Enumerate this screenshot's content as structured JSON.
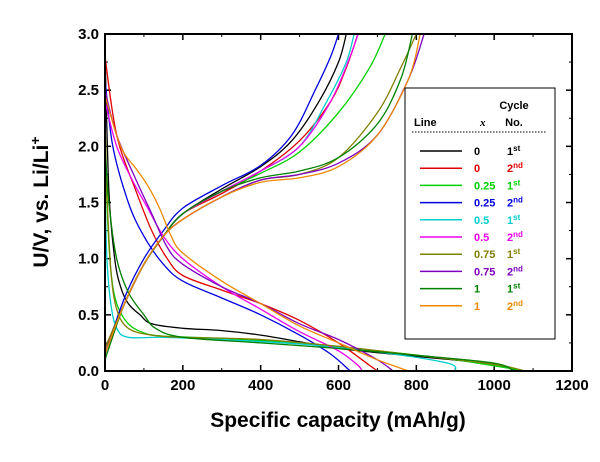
{
  "chart_data": {
    "type": "line",
    "xlabel": "Specific capacity (mAh/g)",
    "ylabel": "U/V, vs. Li/Li",
    "ylabel_sup": "+",
    "xlim": [
      0,
      1200
    ],
    "ylim": [
      0,
      3.0
    ],
    "xticks": [
      "0",
      "200",
      "400",
      "600",
      "800",
      "1000",
      "1200"
    ],
    "yticks": [
      "0.0",
      "0.5",
      "1.0",
      "1.5",
      "2.0",
      "2.5",
      "3.0"
    ],
    "legend": {
      "header_line": "Line",
      "header_x": "x",
      "header_cycle": "Cycle",
      "header_no": "No.",
      "position": "right"
    },
    "series": [
      {
        "x_label": "0",
        "cycle": "1",
        "cycle_sup": "st",
        "color": "#000000",
        "discharge": [
          [
            0,
            2.85
          ],
          [
            10,
            1.6
          ],
          [
            25,
            1.0
          ],
          [
            40,
            0.75
          ],
          [
            60,
            0.6
          ],
          [
            90,
            0.5
          ],
          [
            120,
            0.42
          ],
          [
            200,
            0.38
          ],
          [
            300,
            0.36
          ],
          [
            400,
            0.32
          ],
          [
            500,
            0.26
          ],
          [
            600,
            0.2
          ],
          [
            800,
            0.13
          ],
          [
            1000,
            0.06
          ],
          [
            1060,
            0.0
          ]
        ],
        "charge": [
          [
            0,
            0.2
          ],
          [
            50,
            0.6
          ],
          [
            100,
            0.95
          ],
          [
            150,
            1.2
          ],
          [
            200,
            1.4
          ],
          [
            300,
            1.62
          ],
          [
            400,
            1.82
          ],
          [
            480,
            2.05
          ],
          [
            550,
            2.4
          ],
          [
            600,
            2.75
          ],
          [
            620,
            3.0
          ]
        ]
      },
      {
        "x_label": "0",
        "cycle": "2",
        "cycle_sup": "nd",
        "color": "#e00000",
        "discharge": [
          [
            0,
            2.8
          ],
          [
            30,
            2.1
          ],
          [
            80,
            1.6
          ],
          [
            120,
            1.25
          ],
          [
            160,
            1.0
          ],
          [
            200,
            0.85
          ],
          [
            300,
            0.72
          ],
          [
            400,
            0.6
          ],
          [
            500,
            0.45
          ],
          [
            600,
            0.25
          ],
          [
            680,
            0.05
          ],
          [
            700,
            0.0
          ]
        ],
        "charge": [
          [
            0,
            0.2
          ],
          [
            50,
            0.6
          ],
          [
            100,
            0.95
          ],
          [
            150,
            1.2
          ],
          [
            200,
            1.4
          ],
          [
            300,
            1.58
          ],
          [
            400,
            1.78
          ],
          [
            500,
            2.05
          ],
          [
            580,
            2.4
          ],
          [
            620,
            2.7
          ],
          [
            650,
            3.0
          ]
        ]
      },
      {
        "x_label": "0.25",
        "cycle": "1",
        "cycle_sup": "st",
        "color": "#00d000",
        "discharge": [
          [
            0,
            2.2
          ],
          [
            5,
            1.5
          ],
          [
            15,
            0.9
          ],
          [
            30,
            0.6
          ],
          [
            60,
            0.42
          ],
          [
            100,
            0.34
          ],
          [
            150,
            0.31
          ],
          [
            300,
            0.29
          ],
          [
            500,
            0.25
          ],
          [
            700,
            0.18
          ],
          [
            900,
            0.1
          ],
          [
            1080,
            0.0
          ]
        ],
        "charge": [
          [
            0,
            0.15
          ],
          [
            50,
            0.6
          ],
          [
            100,
            0.95
          ],
          [
            150,
            1.2
          ],
          [
            200,
            1.4
          ],
          [
            300,
            1.6
          ],
          [
            400,
            1.76
          ],
          [
            500,
            1.95
          ],
          [
            600,
            2.3
          ],
          [
            680,
            2.7
          ],
          [
            720,
            3.0
          ]
        ]
      },
      {
        "x_label": "0.25",
        "cycle": "2",
        "cycle_sup": "nd",
        "color": "#0000dd",
        "discharge": [
          [
            0,
            2.6
          ],
          [
            20,
            2.0
          ],
          [
            60,
            1.5
          ],
          [
            100,
            1.2
          ],
          [
            150,
            0.95
          ],
          [
            200,
            0.8
          ],
          [
            300,
            0.65
          ],
          [
            400,
            0.5
          ],
          [
            500,
            0.32
          ],
          [
            580,
            0.15
          ],
          [
            630,
            0.0
          ]
        ],
        "charge": [
          [
            0,
            0.15
          ],
          [
            50,
            0.65
          ],
          [
            100,
            1.0
          ],
          [
            150,
            1.25
          ],
          [
            200,
            1.45
          ],
          [
            300,
            1.65
          ],
          [
            400,
            1.83
          ],
          [
            480,
            2.1
          ],
          [
            540,
            2.5
          ],
          [
            580,
            2.8
          ],
          [
            600,
            3.0
          ]
        ]
      },
      {
        "x_label": "0.5",
        "cycle": "1",
        "cycle_sup": "st",
        "color": "#00cccc",
        "discharge": [
          [
            0,
            1.6
          ],
          [
            5,
            1.0
          ],
          [
            15,
            0.6
          ],
          [
            30,
            0.38
          ],
          [
            60,
            0.3
          ],
          [
            150,
            0.3
          ],
          [
            300,
            0.28
          ],
          [
            500,
            0.24
          ],
          [
            700,
            0.17
          ],
          [
            880,
            0.07
          ],
          [
            900,
            0.0
          ]
        ],
        "charge": [
          [
            0,
            0.15
          ],
          [
            50,
            0.6
          ],
          [
            100,
            0.95
          ],
          [
            150,
            1.2
          ],
          [
            200,
            1.4
          ],
          [
            300,
            1.6
          ],
          [
            400,
            1.78
          ],
          [
            500,
            2.0
          ],
          [
            570,
            2.4
          ],
          [
            620,
            2.75
          ],
          [
            640,
            3.0
          ]
        ]
      },
      {
        "x_label": "0.5",
        "cycle": "2",
        "cycle_sup": "nd",
        "color": "#ee00ee",
        "discharge": [
          [
            0,
            2.4
          ],
          [
            30,
            2.0
          ],
          [
            70,
            1.7
          ],
          [
            110,
            1.45
          ],
          [
            150,
            1.2
          ],
          [
            200,
            1.0
          ],
          [
            300,
            0.75
          ],
          [
            400,
            0.55
          ],
          [
            500,
            0.35
          ],
          [
            600,
            0.18
          ],
          [
            650,
            0.05
          ],
          [
            660,
            0.0
          ]
        ],
        "charge": [
          [
            0,
            0.15
          ],
          [
            50,
            0.6
          ],
          [
            100,
            0.95
          ],
          [
            150,
            1.2
          ],
          [
            200,
            1.4
          ],
          [
            300,
            1.6
          ],
          [
            400,
            1.78
          ],
          [
            500,
            2.0
          ],
          [
            580,
            2.4
          ],
          [
            630,
            2.8
          ],
          [
            650,
            3.0
          ]
        ]
      },
      {
        "x_label": "0.75",
        "cycle": "1",
        "cycle_sup": "st",
        "color": "#808000",
        "discharge": [
          [
            0,
            2.3
          ],
          [
            5,
            1.6
          ],
          [
            15,
            0.9
          ],
          [
            30,
            0.55
          ],
          [
            60,
            0.38
          ],
          [
            120,
            0.32
          ],
          [
            200,
            0.3
          ],
          [
            400,
            0.28
          ],
          [
            600,
            0.22
          ],
          [
            800,
            0.14
          ],
          [
            1000,
            0.06
          ],
          [
            1080,
            0.0
          ]
        ],
        "charge": [
          [
            0,
            0.2
          ],
          [
            50,
            0.6
          ],
          [
            100,
            0.95
          ],
          [
            150,
            1.2
          ],
          [
            200,
            1.35
          ],
          [
            300,
            1.55
          ],
          [
            400,
            1.7
          ],
          [
            500,
            1.75
          ],
          [
            600,
            1.9
          ],
          [
            700,
            2.3
          ],
          [
            760,
            2.7
          ],
          [
            800,
            3.0
          ]
        ]
      },
      {
        "x_label": "0.75",
        "cycle": "2",
        "cycle_sup": "nd",
        "color": "#8000c0",
        "discharge": [
          [
            0,
            2.5
          ],
          [
            30,
            2.1
          ],
          [
            80,
            1.7
          ],
          [
            120,
            1.4
          ],
          [
            160,
            1.1
          ],
          [
            200,
            0.95
          ],
          [
            300,
            0.75
          ],
          [
            400,
            0.6
          ],
          [
            500,
            0.42
          ],
          [
            600,
            0.28
          ],
          [
            700,
            0.1
          ],
          [
            740,
            0.0
          ]
        ],
        "charge": [
          [
            0,
            0.15
          ],
          [
            50,
            0.6
          ],
          [
            100,
            0.95
          ],
          [
            150,
            1.2
          ],
          [
            200,
            1.35
          ],
          [
            300,
            1.55
          ],
          [
            400,
            1.7
          ],
          [
            500,
            1.75
          ],
          [
            600,
            1.85
          ],
          [
            700,
            2.1
          ],
          [
            780,
            2.6
          ],
          [
            820,
            3.0
          ]
        ]
      },
      {
        "x_label": "1",
        "cycle": "1",
        "cycle_sup": "st",
        "color": "#008000",
        "discharge": [
          [
            0,
            2.0
          ],
          [
            10,
            1.5
          ],
          [
            30,
            1.0
          ],
          [
            60,
            0.7
          ],
          [
            100,
            0.5
          ],
          [
            130,
            0.38
          ],
          [
            200,
            0.3
          ],
          [
            400,
            0.25
          ],
          [
            600,
            0.2
          ],
          [
            800,
            0.14
          ],
          [
            1000,
            0.07
          ],
          [
            1050,
            0.0
          ]
        ],
        "charge": [
          [
            0,
            0.1
          ],
          [
            50,
            0.6
          ],
          [
            100,
            0.95
          ],
          [
            150,
            1.2
          ],
          [
            200,
            1.4
          ],
          [
            300,
            1.6
          ],
          [
            400,
            1.72
          ],
          [
            500,
            1.78
          ],
          [
            600,
            1.9
          ],
          [
            700,
            2.2
          ],
          [
            760,
            2.6
          ],
          [
            790,
            3.0
          ]
        ]
      },
      {
        "x_label": "1",
        "cycle": "2",
        "cycle_sup": "nd",
        "color": "#ee8800",
        "discharge": [
          [
            0,
            2.45
          ],
          [
            40,
            2.0
          ],
          [
            80,
            1.8
          ],
          [
            110,
            1.65
          ],
          [
            140,
            1.45
          ],
          [
            170,
            1.2
          ],
          [
            200,
            1.05
          ],
          [
            300,
            0.8
          ],
          [
            400,
            0.6
          ],
          [
            500,
            0.4
          ],
          [
            600,
            0.25
          ],
          [
            700,
            0.1
          ],
          [
            780,
            0.0
          ]
        ],
        "charge": [
          [
            0,
            0.15
          ],
          [
            50,
            0.6
          ],
          [
            100,
            0.95
          ],
          [
            150,
            1.2
          ],
          [
            200,
            1.35
          ],
          [
            300,
            1.55
          ],
          [
            400,
            1.68
          ],
          [
            500,
            1.72
          ],
          [
            600,
            1.82
          ],
          [
            700,
            2.1
          ],
          [
            780,
            2.6
          ],
          [
            810,
            3.0
          ]
        ]
      }
    ]
  }
}
